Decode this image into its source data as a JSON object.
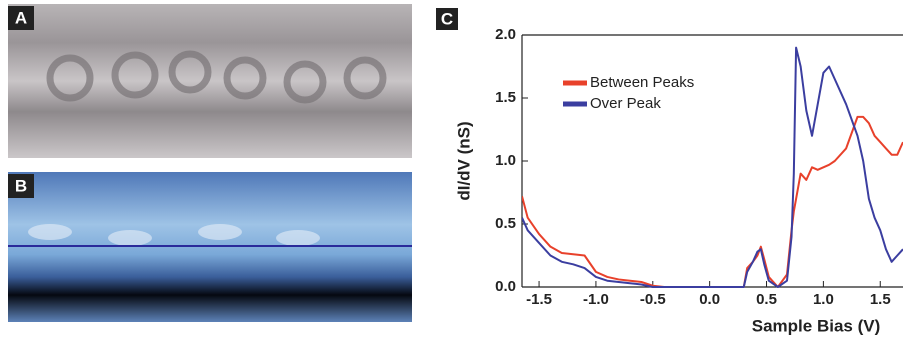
{
  "panel_labels": [
    "A",
    "B",
    "C"
  ],
  "chart_data": {
    "type": "line",
    "x_label": "Sample Bias (V)",
    "y_label": "dI/dV (nS)",
    "x": [
      -1.65,
      -1.6,
      -1.5,
      -1.4,
      -1.3,
      -1.2,
      -1.1,
      -1.0,
      -0.9,
      -0.8,
      -0.7,
      -0.6,
      -0.5,
      -0.4,
      0.3,
      0.33,
      0.38,
      0.42,
      0.45,
      0.48,
      0.52,
      0.6,
      0.68,
      0.72,
      0.74,
      0.76,
      0.8,
      0.85,
      0.9,
      0.95,
      1.0,
      1.05,
      1.1,
      1.2,
      1.3,
      1.35,
      1.4,
      1.45,
      1.5,
      1.55,
      1.6,
      1.65,
      1.7
    ],
    "series": [
      {
        "name": "Between Peaks",
        "color": "#e8412b",
        "values": [
          0.72,
          0.55,
          0.42,
          0.32,
          0.27,
          0.26,
          0.25,
          0.12,
          0.08,
          0.06,
          0.05,
          0.04,
          0.01,
          0,
          0,
          0.15,
          0.2,
          0.25,
          0.32,
          0.22,
          0.08,
          0,
          0.1,
          0.45,
          0.6,
          0.7,
          0.9,
          0.85,
          0.95,
          0.93,
          0.95,
          0.97,
          1.0,
          1.1,
          1.35,
          1.35,
          1.3,
          1.2,
          1.15,
          1.1,
          1.05,
          1.05,
          1.15
        ]
      },
      {
        "name": "Over Peak",
        "color": "#3b3ea0",
        "values": [
          0.55,
          0.45,
          0.35,
          0.25,
          0.2,
          0.18,
          0.15,
          0.08,
          0.05,
          0.04,
          0.03,
          0.02,
          0,
          0,
          0,
          0.12,
          0.2,
          0.28,
          0.3,
          0.18,
          0.05,
          0,
          0.05,
          0.4,
          0.9,
          1.9,
          1.75,
          1.4,
          1.2,
          1.45,
          1.7,
          1.75,
          1.65,
          1.45,
          1.2,
          1.0,
          0.7,
          0.55,
          0.45,
          0.3,
          0.2,
          0.25,
          0.3
        ]
      }
    ],
    "xlim": [
      -1.65,
      1.7
    ],
    "ylim": [
      0,
      2.0
    ],
    "xticks": [
      -1.5,
      {
        "value": -1.0,
        "label": "-1.0"
      },
      -0.5,
      {
        "value": 0.0,
        "label": "0.0"
      },
      0.5,
      {
        "value": 1.0,
        "label": "1.0"
      },
      1.5
    ],
    "yticks": [
      {
        "value": 0.0,
        "label": "0.0"
      },
      0.5,
      {
        "value": 1.0,
        "label": "1.0"
      },
      1.5,
      {
        "value": 2.0,
        "label": "2.0"
      }
    ],
    "legend": "upper-left"
  }
}
